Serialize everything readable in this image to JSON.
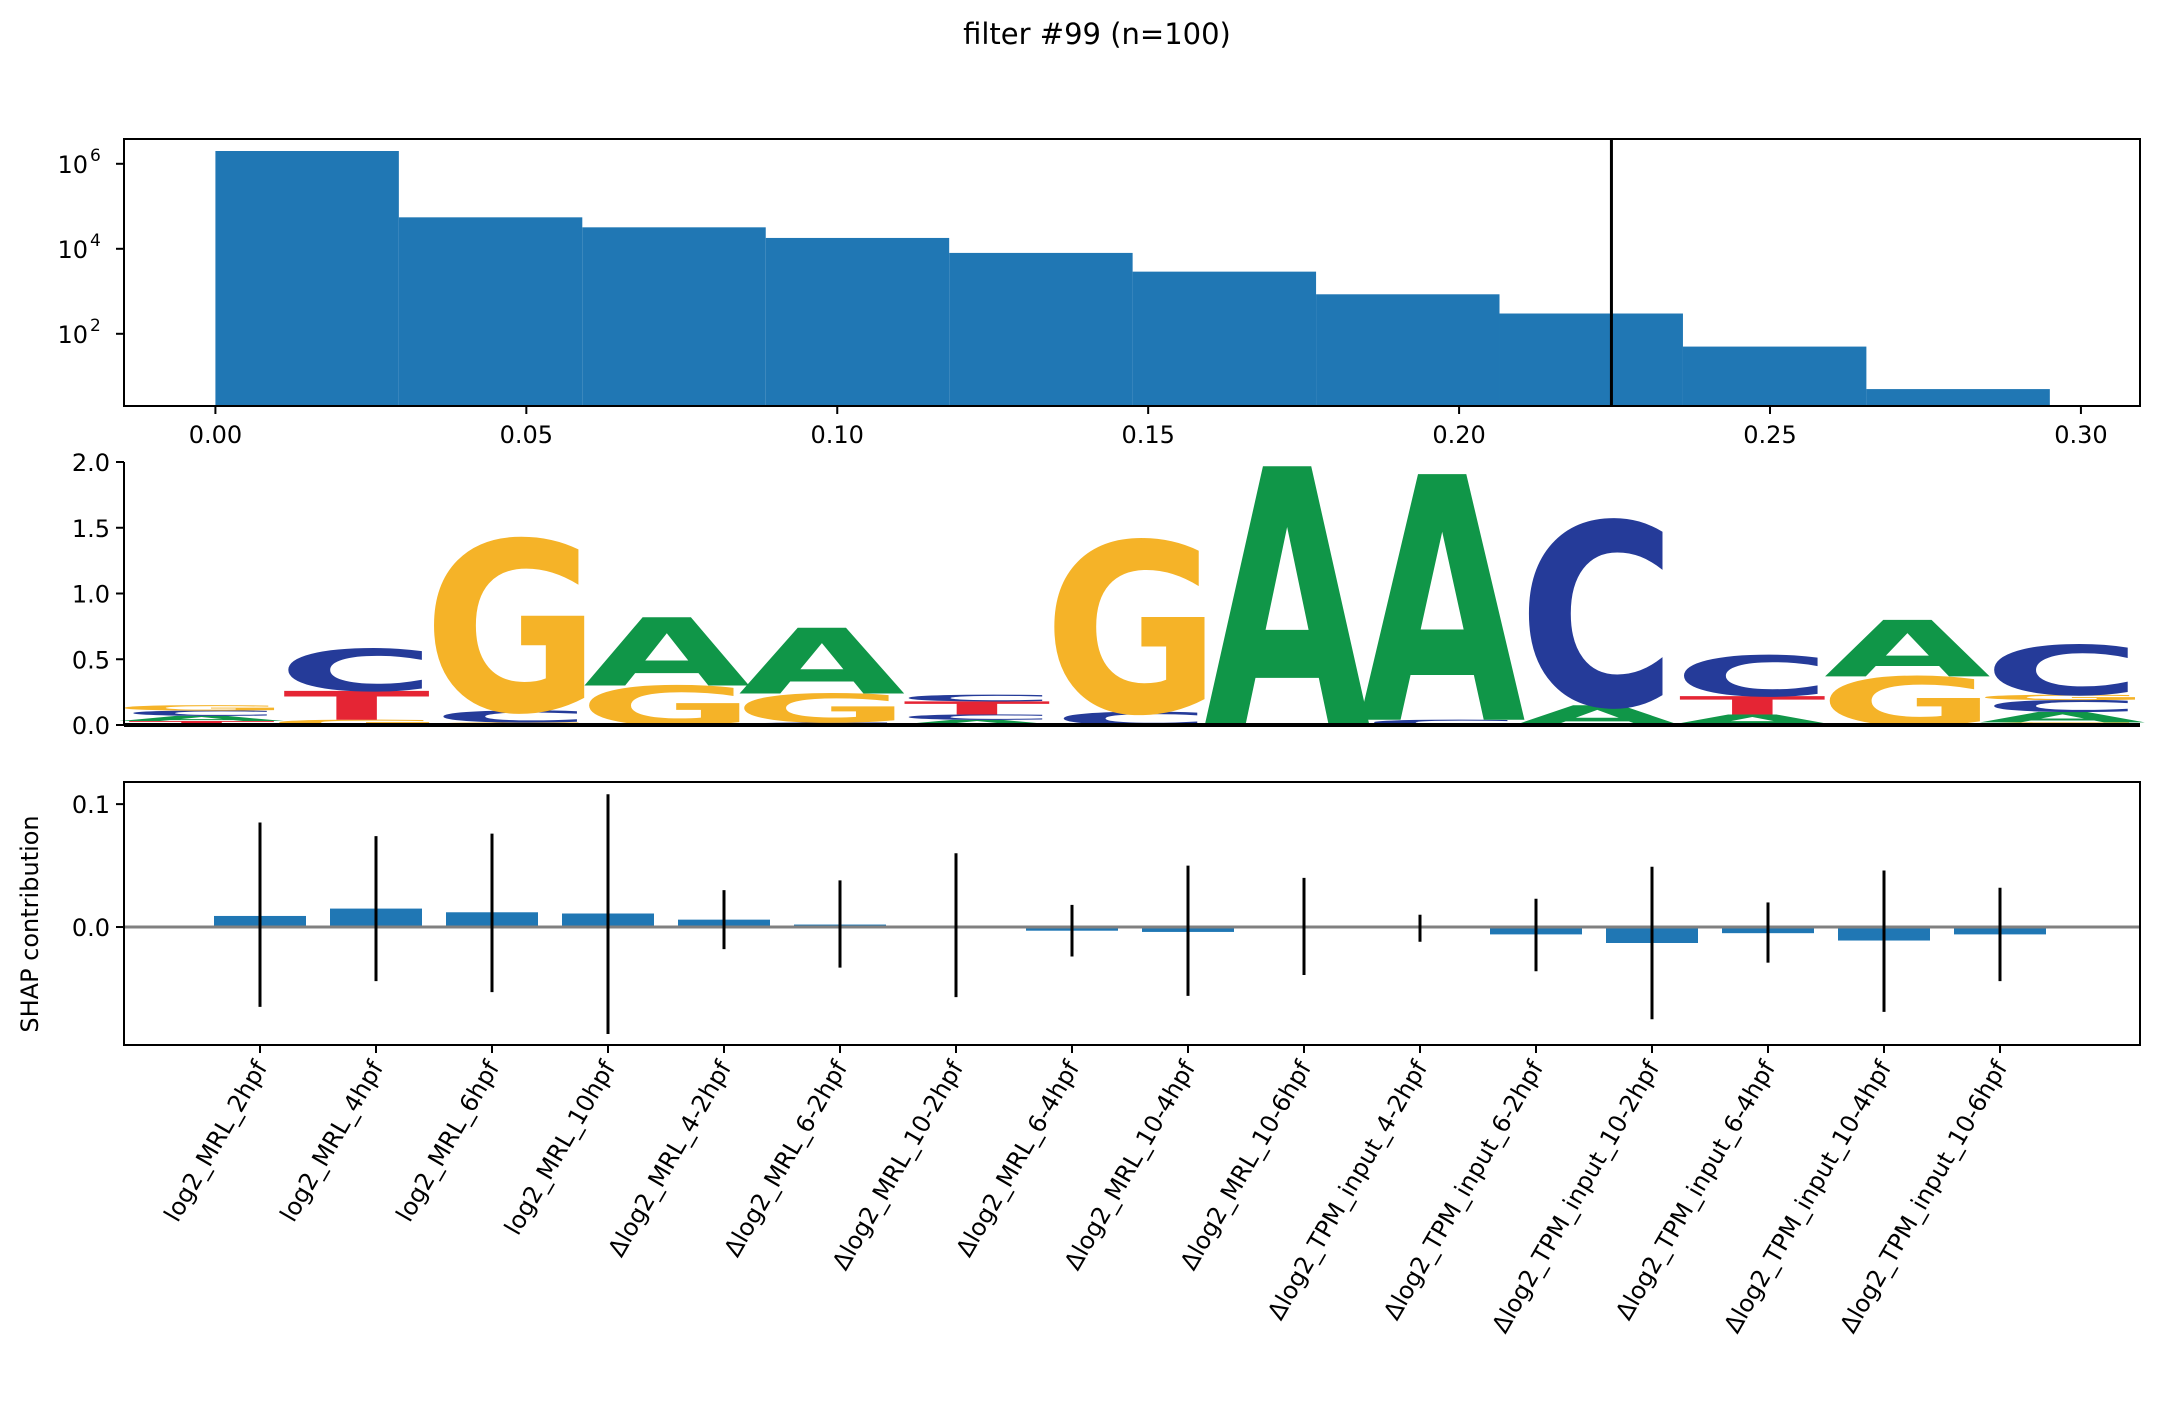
{
  "figure_title": "filter #99 (n=100)",
  "chart_data": [
    {
      "type": "bar",
      "panel": "histogram",
      "y_scale": "log",
      "ylim": [
        2,
        2000000
      ],
      "xlim": [
        -0.0147,
        0.3095
      ],
      "bin_edges": [
        0.0,
        0.0295,
        0.059,
        0.0885,
        0.118,
        0.1475,
        0.177,
        0.2065,
        0.236,
        0.2655,
        0.295
      ],
      "counts": [
        2000000,
        55000,
        32000,
        18000,
        8000,
        2900,
        850,
        300,
        50,
        5
      ],
      "x_ticks": [
        0.0,
        0.05,
        0.1,
        0.15,
        0.2,
        0.25,
        0.3
      ],
      "x_tick_labels": [
        "0.00",
        "0.05",
        "0.10",
        "0.15",
        "0.20",
        "0.25",
        "0.30"
      ],
      "y_ticks": [
        100,
        10000,
        1000000
      ],
      "y_tick_labels": [
        {
          "base": "10",
          "exp": "2"
        },
        {
          "base": "10",
          "exp": "4"
        },
        {
          "base": "10",
          "exp": "6"
        }
      ],
      "threshold_line": 0.2245,
      "colors": {
        "bars": "#2077b4",
        "threshold": "#000000"
      }
    },
    {
      "type": "sequence_logo",
      "panel": "motif",
      "ylim": [
        0,
        2.0
      ],
      "y_ticks": [
        0,
        0.5,
        1.0,
        1.5,
        2.0
      ],
      "y_tick_labels": [
        "0.0",
        "0.5",
        "1.0",
        "1.5",
        "2.0"
      ],
      "colors": {
        "A": "#109648",
        "C": "#253b99",
        "G": "#f5b328",
        "T": "#e52534"
      },
      "positions": [
        [
          [
            "T",
            0.03
          ],
          [
            "A",
            0.04
          ],
          [
            "C",
            0.04
          ],
          [
            "G",
            0.04
          ]
        ],
        [
          [
            "G",
            0.04
          ],
          [
            "T",
            0.22
          ],
          [
            "C",
            0.32
          ]
        ],
        [
          [
            "G",
            0.02
          ],
          [
            "C",
            0.09
          ],
          [
            "G",
            1.3
          ]
        ],
        [
          [
            "G",
            0.3
          ],
          [
            "A",
            0.52
          ]
        ],
        [
          [
            "C",
            0.02
          ],
          [
            "G",
            0.22
          ],
          [
            "A",
            0.5
          ]
        ],
        [
          [
            "A",
            0.04
          ],
          [
            "C",
            0.04
          ],
          [
            "T",
            0.1
          ],
          [
            "C",
            0.05
          ]
        ],
        [
          [
            "C",
            0.1
          ],
          [
            "G",
            1.3
          ]
        ],
        [
          [
            "A",
            1.97
          ]
        ],
        [
          [
            "C",
            0.04
          ],
          [
            "A",
            1.87
          ]
        ],
        [
          [
            "A",
            0.15
          ],
          [
            "C",
            1.4
          ]
        ],
        [
          [
            "A",
            0.08
          ],
          [
            "T",
            0.14
          ],
          [
            "C",
            0.31
          ]
        ],
        [
          [
            "G",
            0.37
          ],
          [
            "A",
            0.43
          ]
        ],
        [
          [
            "G",
            0.02
          ],
          [
            "A",
            0.08
          ],
          [
            "C",
            0.09
          ],
          [
            "G",
            0.04
          ],
          [
            "C",
            0.38
          ]
        ]
      ]
    },
    {
      "type": "bar",
      "panel": "shap",
      "ylabel": "SHAP contribution",
      "ylim": [
        -0.096,
        0.118
      ],
      "y_ticks": [
        -0.1,
        0.0,
        0.1
      ],
      "y_tick_labels": [
        "",
        "0.0",
        "0.1"
      ],
      "categories": [
        "log2_MRL_2hpf",
        "log2_MRL_4hpf",
        "log2_MRL_6hpf",
        "log2_MRL_10hpf",
        "Δlog2_MRL_4-2hpf",
        "Δlog2_MRL_6-2hpf",
        "Δlog2_MRL_10-2hpf",
        "Δlog2_MRL_6-4hpf",
        "Δlog2_MRL_10-4hpf",
        "Δlog2_MRL_10-6hpf",
        "Δlog2_TPM_input_4-2hpf",
        "Δlog2_TPM_input_6-2hpf",
        "Δlog2_TPM_input_10-2hpf",
        "Δlog2_TPM_input_6-4hpf",
        "Δlog2_TPM_input_10-4hpf",
        "Δlog2_TPM_input_10-6hpf"
      ],
      "values": [
        0.009,
        0.015,
        0.012,
        0.011,
        0.006,
        0.002,
        0.0,
        -0.003,
        -0.004,
        0.0,
        0.0,
        -0.006,
        -0.013,
        -0.005,
        -0.011,
        -0.006
      ],
      "err_low": [
        -0.065,
        -0.044,
        -0.053,
        -0.087,
        -0.018,
        -0.033,
        -0.057,
        -0.024,
        -0.056,
        -0.039,
        -0.012,
        -0.036,
        -0.075,
        -0.029,
        -0.069,
        -0.044
      ],
      "err_high": [
        0.085,
        0.074,
        0.076,
        0.108,
        0.03,
        0.038,
        0.06,
        0.018,
        0.05,
        0.04,
        0.01,
        0.023,
        0.049,
        0.02,
        0.046,
        0.032
      ],
      "colors": {
        "bars": "#2077b4",
        "zero_line": "#808080",
        "errorbars": "#000000"
      }
    }
  ]
}
